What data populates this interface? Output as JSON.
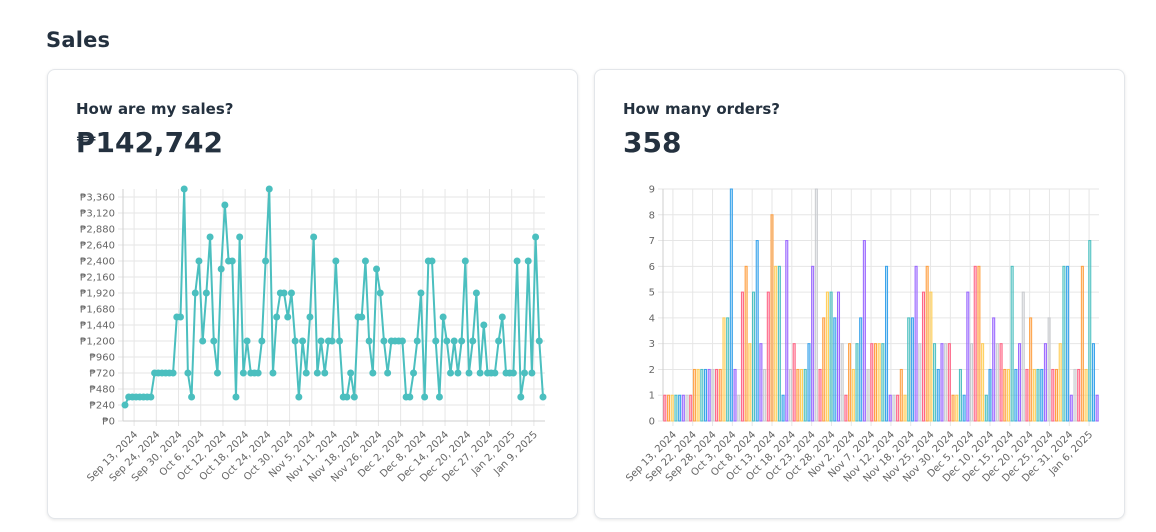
{
  "page": {
    "title": "Sales"
  },
  "sales_card": {
    "title": "How are my sales?",
    "value": "₱142,742"
  },
  "orders_card": {
    "title": "How many orders?",
    "value": "358"
  },
  "chart_data": [
    {
      "type": "line",
      "color": "#4bbfbf",
      "ylim": [
        0,
        3480
      ],
      "yticks": [
        0,
        240,
        480,
        720,
        960,
        1200,
        1440,
        1680,
        1920,
        2160,
        2400,
        2640,
        2880,
        3120,
        3360
      ],
      "ytick_labels": [
        "₱0",
        "₱240",
        "₱480",
        "₱720",
        "₱960",
        "₱1,200",
        "₱1,440",
        "₱1,680",
        "₱1,920",
        "₱2,160",
        "₱2,400",
        "₱2,640",
        "₱2,880",
        "₱3,120",
        "₱3,360"
      ],
      "xtick_labels": [
        "Sep 13, 2024",
        "Sep 24, 2024",
        "Sep 30, 2024",
        "Oct 6, 2024",
        "Oct 12, 2024",
        "Oct 18, 2024",
        "Oct 24, 2024",
        "Oct 30, 2024",
        "Nov 5, 2024",
        "Nov 11, 2024",
        "Nov 18, 2024",
        "Nov 26, 2024",
        "Dec 2, 2024",
        "Dec 8, 2024",
        "Dec 14, 2024",
        "Dec 20, 2024",
        "Dec 27, 2024",
        "Jan 2, 2025",
        "Jan 9, 2025"
      ],
      "values": [
        240,
        360,
        360,
        360,
        360,
        360,
        360,
        360,
        720,
        720,
        720,
        720,
        720,
        720,
        1560,
        1560,
        3480,
        720,
        360,
        1920,
        2400,
        1200,
        1920,
        2760,
        1200,
        720,
        2280,
        3240,
        2400,
        2400,
        360,
        2760,
        720,
        1200,
        720,
        720,
        720,
        1200,
        2400,
        3480,
        720,
        1560,
        1920,
        1920,
        1560,
        1920,
        1200,
        360,
        1200,
        720,
        1560,
        2760,
        720,
        1200,
        720,
        1200,
        1200,
        2400,
        1200,
        360,
        360,
        720,
        360,
        1560,
        1560,
        2400,
        1200,
        720,
        2280,
        1920,
        1200,
        720,
        1200,
        1200,
        1200,
        1200,
        360,
        360,
        720,
        1200,
        1920,
        360,
        2400,
        2400,
        1200,
        360,
        1560,
        1200,
        720,
        1200,
        720,
        1200,
        2400,
        720,
        1200,
        1920,
        720,
        1440,
        720,
        720,
        720,
        1200,
        1560,
        720,
        720,
        720,
        2400,
        360,
        720,
        2400,
        720,
        2760,
        1200,
        360
      ]
    },
    {
      "type": "bar",
      "ylim": [
        0,
        9
      ],
      "yticks": [
        0,
        1,
        2,
        3,
        4,
        5,
        6,
        7,
        8,
        9
      ],
      "ytick_labels": [
        "0",
        "1",
        "2",
        "3",
        "4",
        "5",
        "6",
        "7",
        "8",
        "9"
      ],
      "xtick_labels": [
        "Sep 13, 2024",
        "Sep 22, 2024",
        "Sep 28, 2024",
        "Oct 3, 2024",
        "Oct 8, 2024",
        "Oct 13, 2024",
        "Oct 18, 2024",
        "Oct 23, 2024",
        "Oct 28, 2024",
        "Nov 2, 2024",
        "Nov 7, 2024",
        "Nov 12, 2024",
        "Nov 18, 2024",
        "Nov 25, 2024",
        "Nov 30, 2024",
        "Dec 5, 2024",
        "Dec 10, 2024",
        "Dec 15, 2024",
        "Dec 20, 2024",
        "Dec 25, 2024",
        "Dec 31, 2024",
        "Jan 6, 2025"
      ],
      "colors": [
        "#ff6384",
        "#ff9f40",
        "#ffcd56",
        "#4bc0c0",
        "#36a2eb",
        "#9966ff",
        "#c9cbcf"
      ],
      "values": [
        1,
        1,
        1,
        1,
        1,
        1,
        1,
        1,
        2,
        2,
        2,
        2,
        2,
        2,
        2,
        2,
        4,
        4,
        9,
        2,
        1,
        5,
        6,
        3,
        5,
        7,
        3,
        2,
        5,
        8,
        6,
        6,
        1,
        7,
        2,
        3,
        2,
        2,
        2,
        3,
        6,
        9,
        2,
        4,
        5,
        5,
        4,
        5,
        3,
        1,
        3,
        2,
        3,
        4,
        7,
        2,
        3,
        3,
        3,
        3,
        6,
        1,
        1,
        1,
        2,
        1,
        4,
        4,
        6,
        3,
        5,
        6,
        5,
        3,
        2,
        3,
        3,
        3,
        1,
        1,
        2,
        1,
        5,
        3,
        6,
        6,
        3,
        1,
        2,
        4,
        3,
        3,
        2,
        2,
        6,
        2,
        3,
        5,
        2,
        4,
        2,
        2,
        2,
        3,
        4,
        2,
        2,
        3,
        6,
        6,
        1,
        2,
        2,
        6,
        2,
        7,
        3,
        1
      ]
    }
  ]
}
